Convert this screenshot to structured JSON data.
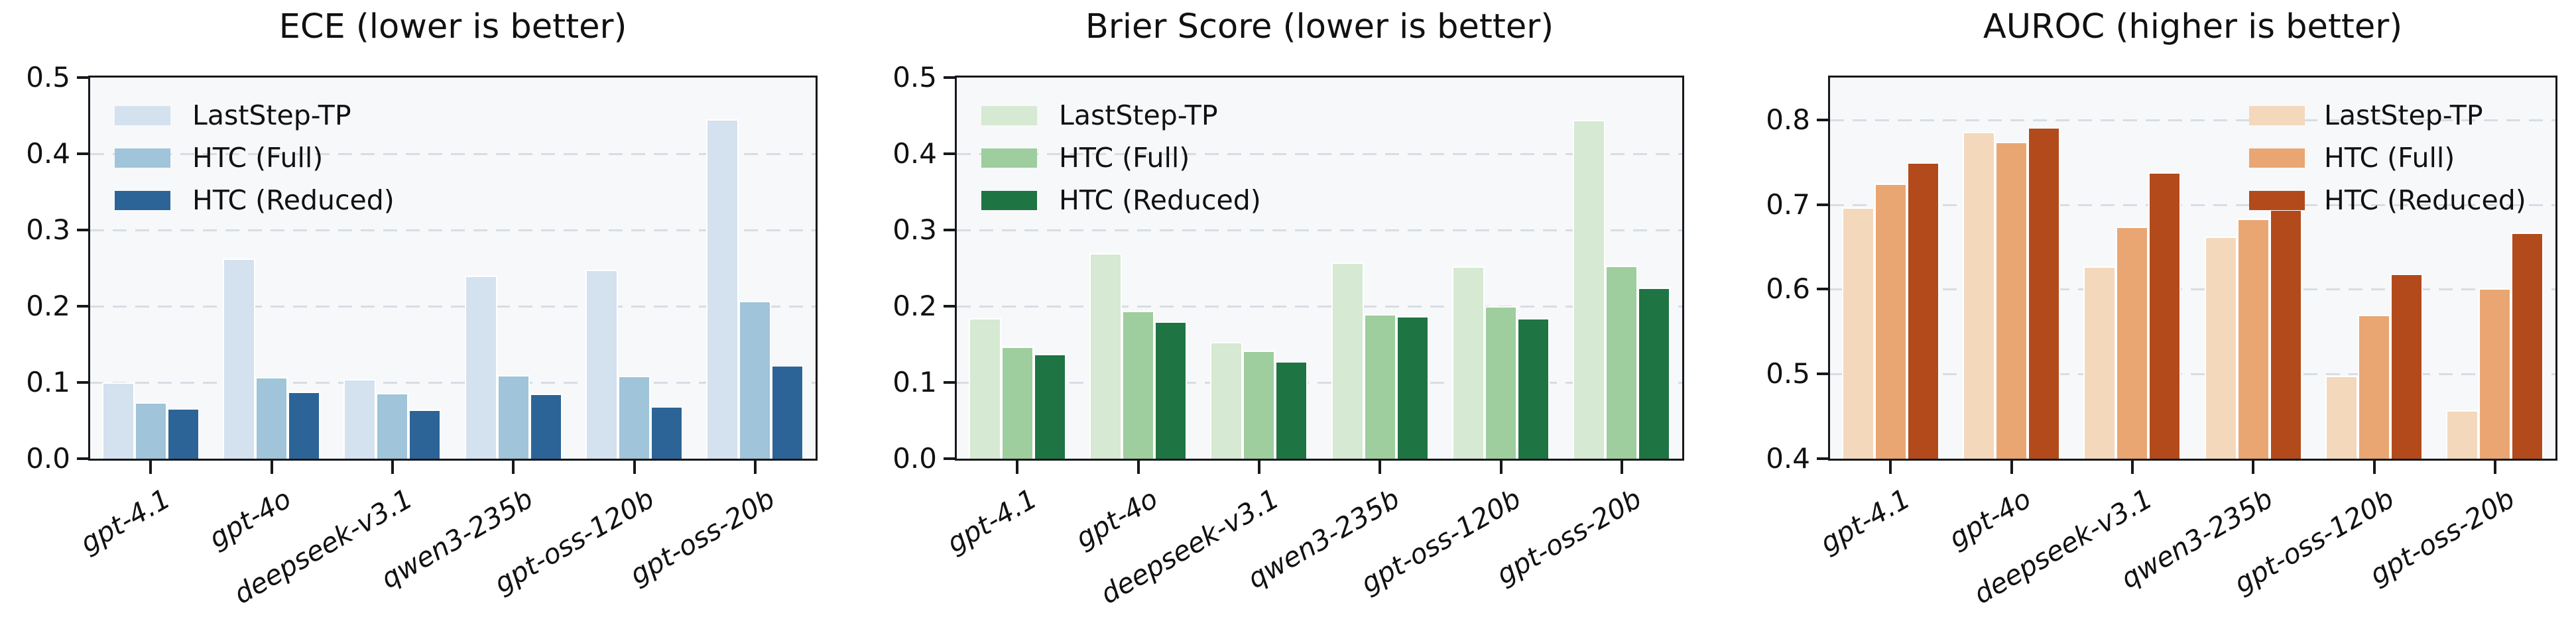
{
  "figure": {
    "background": "#ffffff",
    "plot_background": "#f7f8fa",
    "spine_color": "#16181c",
    "gridline_color": "#d7dde4",
    "text_color": "#111111"
  },
  "chart_data": [
    {
      "type": "bar",
      "title": "ECE (lower is better)",
      "categories": [
        "gpt-4.1",
        "gpt-4o",
        "deepseek-v3.1",
        "qwen3-235b",
        "gpt-oss-120b",
        "gpt-oss-20b"
      ],
      "series": [
        {
          "name": "LastStep-TP",
          "values": [
            0.1,
            0.263,
            0.104,
            0.24,
            0.248,
            0.445
          ]
        },
        {
          "name": "HTC (Full)",
          "values": [
            0.074,
            0.107,
            0.086,
            0.11,
            0.109,
            0.207
          ]
        },
        {
          "name": "HTC (Reduced)",
          "values": [
            0.066,
            0.088,
            0.064,
            0.085,
            0.069,
            0.123
          ]
        }
      ],
      "colors": [
        "#d4e1ee",
        "#a0c4d9",
        "#2c6497"
      ],
      "ylim": [
        0.0,
        0.5
      ],
      "yticks": [
        0.0,
        0.1,
        0.2,
        0.3,
        0.4,
        0.5
      ],
      "grid": true,
      "legend_position": "upper-left",
      "xlabel": "",
      "ylabel": ""
    },
    {
      "type": "bar",
      "title": "Brier Score (lower is better)",
      "categories": [
        "gpt-4.1",
        "gpt-4o",
        "deepseek-v3.1",
        "qwen3-235b",
        "gpt-oss-120b",
        "gpt-oss-20b"
      ],
      "series": [
        {
          "name": "LastStep-TP",
          "values": [
            0.184,
            0.27,
            0.153,
            0.257,
            0.252,
            0.444
          ]
        },
        {
          "name": "HTC (Full)",
          "values": [
            0.147,
            0.194,
            0.142,
            0.19,
            0.2,
            0.253
          ]
        },
        {
          "name": "HTC (Reduced)",
          "values": [
            0.137,
            0.18,
            0.128,
            0.187,
            0.184,
            0.224
          ]
        }
      ],
      "colors": [
        "#d6e9d2",
        "#9ecd9e",
        "#1f7444"
      ],
      "ylim": [
        0.0,
        0.5
      ],
      "yticks": [
        0.0,
        0.1,
        0.2,
        0.3,
        0.4,
        0.5
      ],
      "grid": true,
      "legend_position": "upper-left",
      "xlabel": "",
      "ylabel": ""
    },
    {
      "type": "bar",
      "title": "AUROC (higher is better)",
      "categories": [
        "gpt-4.1",
        "gpt-4o",
        "deepseek-v3.1",
        "qwen3-235b",
        "gpt-oss-120b",
        "gpt-oss-20b"
      ],
      "series": [
        {
          "name": "LastStep-TP",
          "values": [
            0.697,
            0.786,
            0.627,
            0.662,
            0.498,
            0.457
          ]
        },
        {
          "name": "HTC (Full)",
          "values": [
            0.725,
            0.774,
            0.674,
            0.683,
            0.57,
            0.601
          ]
        },
        {
          "name": "HTC (Reduced)",
          "values": [
            0.75,
            0.791,
            0.738,
            0.694,
            0.618,
            0.667
          ]
        }
      ],
      "colors": [
        "#f4d8bb",
        "#e9a672",
        "#b24a1b"
      ],
      "ylim": [
        0.4,
        0.85
      ],
      "yticks": [
        0.4,
        0.5,
        0.6,
        0.7,
        0.8
      ],
      "grid": true,
      "legend_position": "upper-right",
      "xlabel": "",
      "ylabel": ""
    }
  ]
}
